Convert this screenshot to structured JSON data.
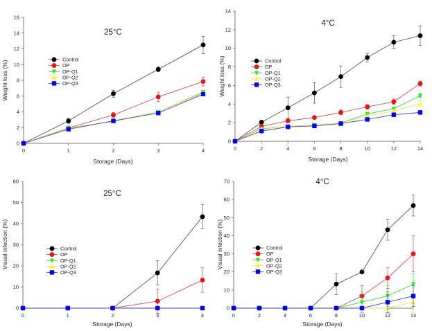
{
  "chart_data": [
    {
      "type": "line",
      "title": "25°C",
      "xlabel": "Storage (Days)",
      "ylabel": "Weight loss (%)",
      "x": [
        0,
        1,
        2,
        3,
        4
      ],
      "xlim": [
        0,
        4
      ],
      "xticks": [
        0,
        1,
        2,
        3,
        4
      ],
      "ylim": [
        0,
        16
      ],
      "yticks": [
        0,
        2,
        4,
        6,
        8,
        10,
        12,
        14,
        16
      ],
      "legend": "center-left",
      "grid": false,
      "series": [
        {
          "name": "Control",
          "values": [
            0,
            2.85,
            6.3,
            9.4,
            12.5
          ],
          "errors": [
            0,
            0.3,
            0.45,
            0.3,
            1.1
          ]
        },
        {
          "name": "OP",
          "values": [
            0,
            1.95,
            3.6,
            5.9,
            7.85
          ],
          "errors": [
            0,
            0.1,
            0.3,
            0.6,
            0.55
          ]
        },
        {
          "name": "OP-Q1",
          "values": [
            0,
            1.95,
            2.8,
            4.0,
            6.5
          ],
          "errors": [
            0,
            0.1,
            0.1,
            0.1,
            0.25
          ]
        },
        {
          "name": "OP-Q2",
          "values": [
            0,
            1.9,
            2.85,
            4.0,
            6.4
          ],
          "errors": [
            0,
            0.1,
            0.1,
            0.1,
            0.2
          ]
        },
        {
          "name": "OP-Q3",
          "values": [
            0,
            1.8,
            2.85,
            3.85,
            6.25
          ],
          "errors": [
            0,
            0.1,
            0.1,
            0.1,
            0.15
          ]
        }
      ]
    },
    {
      "type": "line",
      "title": "4°C",
      "xlabel": "Storage (Days)",
      "ylabel": "Weight loss (%)",
      "x": [
        0,
        2,
        4,
        6,
        8,
        10,
        12,
        14
      ],
      "xlim": [
        0,
        14
      ],
      "xticks": [
        0,
        2,
        4,
        6,
        8,
        10,
        12,
        14
      ],
      "ylim": [
        0,
        14
      ],
      "yticks": [
        0,
        2,
        4,
        6,
        8,
        10,
        12,
        14
      ],
      "legend": "center-left",
      "grid": false,
      "series": [
        {
          "name": "Control",
          "values": [
            0,
            2.05,
            3.6,
            5.2,
            6.95,
            9.0,
            10.65,
            11.35
          ],
          "errors": [
            0,
            0.15,
            1.15,
            1.1,
            1.15,
            0.45,
            0.7,
            1.05
          ]
        },
        {
          "name": "OP",
          "values": [
            0,
            1.6,
            2.2,
            2.55,
            3.1,
            3.7,
            4.25,
            6.2
          ],
          "errors": [
            0,
            0.1,
            0.2,
            0.15,
            0.25,
            0.25,
            0.3,
            0.25
          ]
        },
        {
          "name": "OP-Q1",
          "values": [
            0,
            1.35,
            1.6,
            1.75,
            1.95,
            2.95,
            3.5,
            4.9
          ],
          "errors": [
            0,
            0.05,
            0.05,
            0.05,
            0.05,
            0.1,
            0.15,
            0.2
          ]
        },
        {
          "name": "OP-Q2",
          "values": [
            0,
            1.3,
            1.6,
            1.75,
            1.95,
            2.7,
            3.25,
            4.05
          ],
          "errors": [
            0,
            0.05,
            0.05,
            0.05,
            0.05,
            0.1,
            0.15,
            0.3
          ]
        },
        {
          "name": "OP-Q3",
          "values": [
            0,
            1.1,
            1.55,
            1.65,
            1.9,
            2.35,
            2.85,
            3.1
          ],
          "errors": [
            0,
            0.05,
            0.05,
            0.05,
            0.05,
            0.1,
            0.1,
            0.1
          ]
        }
      ]
    },
    {
      "type": "line",
      "title": "25°C",
      "xlabel": "Storage (Days)",
      "ylabel": "Visual infection (%)",
      "x": [
        0,
        1,
        2,
        3,
        4
      ],
      "xlim": [
        0,
        4
      ],
      "xticks": [
        0,
        1,
        2,
        3,
        4
      ],
      "ylim": [
        0,
        60
      ],
      "yticks": [
        0,
        10,
        20,
        30,
        40,
        50,
        60
      ],
      "legend": "center-left",
      "grid": false,
      "series": [
        {
          "name": "Control",
          "values": [
            0,
            0,
            0,
            16.7,
            43.3
          ],
          "errors": [
            0,
            0,
            0,
            5.8,
            5.8
          ]
        },
        {
          "name": "OP",
          "values": [
            0,
            0,
            0,
            3.3,
            13.3
          ],
          "errors": [
            0,
            0,
            0,
            5.8,
            5.8
          ]
        },
        {
          "name": "OP-Q1",
          "values": [
            0,
            0,
            0,
            0,
            0
          ],
          "errors": [
            0,
            0,
            0,
            0,
            0
          ]
        },
        {
          "name": "OP-Q2",
          "values": [
            0,
            0,
            0,
            0,
            0
          ],
          "errors": [
            0,
            0,
            0,
            0,
            0
          ]
        },
        {
          "name": "OP-Q3",
          "values": [
            0,
            0,
            0,
            0,
            0
          ],
          "errors": [
            0,
            0,
            0,
            0,
            0
          ]
        }
      ]
    },
    {
      "type": "line",
      "title": "4°C",
      "xlabel": "Storage (Days)",
      "ylabel": "Visual infection (%)",
      "x": [
        0,
        2,
        4,
        6,
        8,
        10,
        12,
        14
      ],
      "xlim": [
        0,
        14
      ],
      "xticks": [
        0,
        2,
        4,
        6,
        8,
        10,
        12,
        14
      ],
      "ylim": [
        0,
        70
      ],
      "yticks": [
        0,
        10,
        20,
        30,
        40,
        50,
        60,
        70
      ],
      "legend": "center-left",
      "grid": false,
      "series": [
        {
          "name": "Control",
          "values": [
            0,
            0,
            0,
            0,
            13.3,
            20,
            43.3,
            56.7
          ],
          "errors": [
            0,
            0,
            0,
            0,
            5.8,
            0,
            5.8,
            5.8
          ]
        },
        {
          "name": "OP",
          "values": [
            0,
            0,
            0,
            0,
            0,
            6.7,
            16.7,
            30
          ],
          "errors": [
            0,
            0,
            0,
            0,
            0,
            5.8,
            5.8,
            10
          ]
        },
        {
          "name": "OP-Q1",
          "values": [
            0,
            0,
            0,
            0,
            0,
            3.3,
            6.7,
            13.3
          ],
          "errors": [
            0,
            0,
            0,
            0,
            0,
            5.8,
            5.8,
            5.8
          ]
        },
        {
          "name": "OP-Q2",
          "values": [
            0,
            0,
            0,
            0,
            0,
            0,
            0,
            3.3
          ],
          "errors": [
            0,
            0,
            0,
            0,
            0,
            0,
            0,
            5.8
          ]
        },
        {
          "name": "OP-Q3",
          "values": [
            0,
            0,
            0,
            0,
            0,
            0,
            3.3,
            6.7
          ],
          "errors": [
            0,
            0,
            0,
            0,
            0,
            0,
            5.8,
            5.8
          ]
        }
      ]
    }
  ],
  "series_style": [
    {
      "marker": "circle",
      "color": "#000000",
      "line": "#555555"
    },
    {
      "marker": "circle",
      "color": "#ee1111",
      "line": "#d05050"
    },
    {
      "marker": "triangle-down",
      "color": "#22ee22",
      "line": "#44cc44"
    },
    {
      "marker": "triangle-up",
      "color": "#ffff00",
      "line": "#e8e070"
    },
    {
      "marker": "square",
      "color": "#0000ff",
      "line": "#4444aa"
    }
  ]
}
